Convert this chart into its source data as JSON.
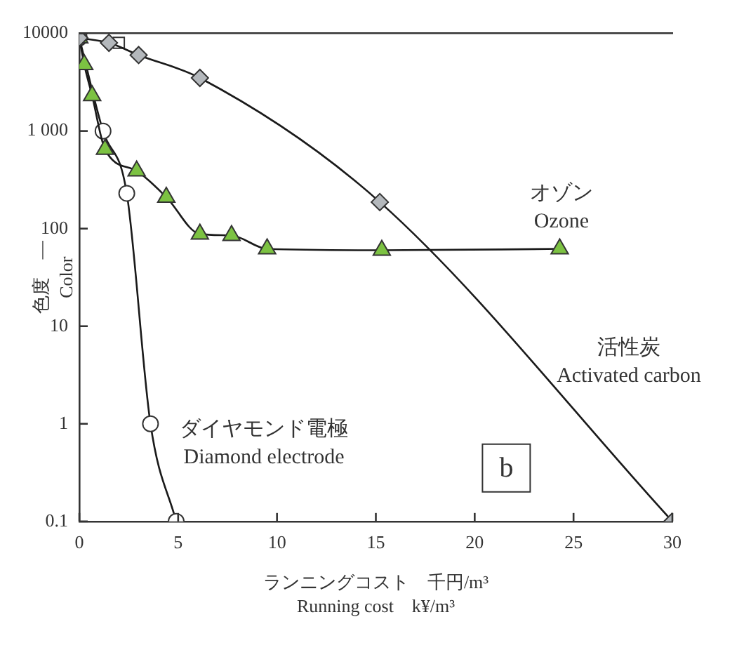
{
  "chart_data": {
    "type": "line",
    "xlabel": "ランニングコスト　千円/m³\nRunning cost　k¥/m³",
    "ylabel": "色度　—\nColor",
    "log": "y",
    "xlim": [
      0,
      30
    ],
    "xticks": [
      0,
      5,
      10,
      15,
      20,
      25,
      30
    ],
    "ylim": [
      0.1,
      10000
    ],
    "yticks": [
      0.1,
      1,
      10,
      100,
      {
        "value": 1000,
        "label": "1 000"
      },
      10000
    ],
    "grid": false,
    "legend": false,
    "annotations": [
      "b"
    ],
    "series": [
      {
        "name": "活性炭\nActivated carbon",
        "type": "line",
        "marker": "diamond",
        "color": "#b4b8bc",
        "x": [
          0,
          1.5,
          3.0,
          6.1,
          15.2,
          30
        ],
        "values": [
          9000,
          8000,
          6000,
          3500,
          187,
          0.1
        ]
      },
      {
        "name": "オゾン\nOzone",
        "type": "line",
        "marker": "triangle",
        "color": "#7cc242",
        "x": [
          0,
          0.25,
          0.65,
          1.3,
          2.9,
          4.4,
          6.1,
          7.7,
          9.5,
          15.3,
          24.3
        ],
        "values": [
          9000,
          4800,
          2300,
          650,
          390,
          210,
          88,
          85,
          62,
          60,
          62
        ]
      },
      {
        "name": "ダイヤモンド電極\nDiamond electrode",
        "type": "line",
        "marker": "circle",
        "color": "#ffffff",
        "x": [
          0,
          1.2,
          2.4,
          3.6,
          4.9
        ],
        "values": [
          9000,
          1000,
          230,
          1,
          0.1
        ]
      },
      {
        "type": "scatter",
        "marker": "square",
        "color": "#ffffff",
        "x": [
          2.0
        ],
        "values": [
          8000
        ]
      }
    ]
  }
}
